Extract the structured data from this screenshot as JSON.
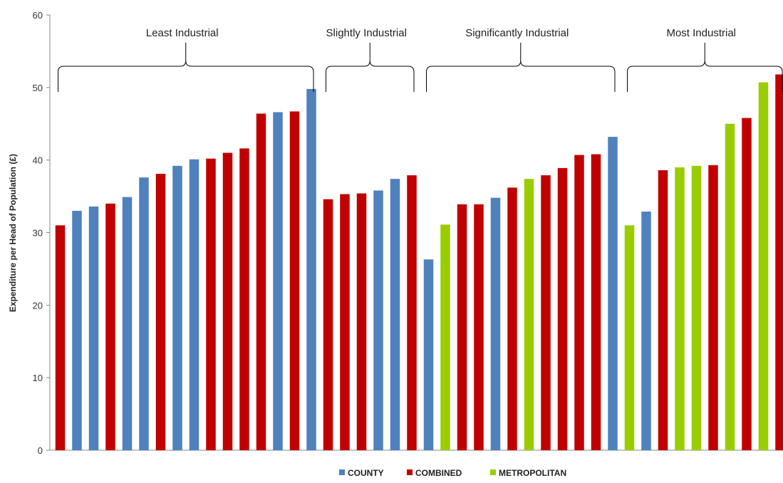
{
  "chart_data": {
    "type": "bar",
    "ylabel": "Expenditure per Head of Population (£)",
    "xlabel": "",
    "ylim": [
      0,
      60
    ],
    "yticks": [
      0,
      10,
      20,
      30,
      40,
      50,
      60
    ],
    "grid": false,
    "legend_placement": "bottom",
    "colors": {
      "COUNTY": "#4f81bd",
      "COMBINED": "#c00000",
      "METROPOLITAN": "#9acd00"
    },
    "legend": [
      "COUNTY",
      "COMBINED",
      "METROPOLITAN"
    ],
    "groups": [
      {
        "label": "Least Industrial",
        "start": 0,
        "end": 15
      },
      {
        "label": "Slightly Industrial",
        "start": 16,
        "end": 21
      },
      {
        "label": "Significantly Industrial",
        "start": 22,
        "end": 33
      },
      {
        "label": "Most Industrial",
        "start": 34,
        "end": 43
      }
    ],
    "bars": [
      {
        "type": "COMBINED",
        "value": 31.0
      },
      {
        "type": "COUNTY",
        "value": 33.0
      },
      {
        "type": "COUNTY",
        "value": 33.6
      },
      {
        "type": "COMBINED",
        "value": 34.0
      },
      {
        "type": "COUNTY",
        "value": 34.9
      },
      {
        "type": "COUNTY",
        "value": 37.6
      },
      {
        "type": "COMBINED",
        "value": 38.1
      },
      {
        "type": "COUNTY",
        "value": 39.2
      },
      {
        "type": "COUNTY",
        "value": 40.1
      },
      {
        "type": "COMBINED",
        "value": 40.2
      },
      {
        "type": "COMBINED",
        "value": 41.0
      },
      {
        "type": "COMBINED",
        "value": 41.6
      },
      {
        "type": "COMBINED",
        "value": 46.4
      },
      {
        "type": "COUNTY",
        "value": 46.6
      },
      {
        "type": "COMBINED",
        "value": 46.7
      },
      {
        "type": "COUNTY",
        "value": 49.8
      },
      {
        "type": "COMBINED",
        "value": 34.6
      },
      {
        "type": "COMBINED",
        "value": 35.3
      },
      {
        "type": "COMBINED",
        "value": 35.4
      },
      {
        "type": "COUNTY",
        "value": 35.8
      },
      {
        "type": "COUNTY",
        "value": 37.4
      },
      {
        "type": "COMBINED",
        "value": 37.9
      },
      {
        "type": "COUNTY",
        "value": 26.3
      },
      {
        "type": "METROPOLITAN",
        "value": 31.1
      },
      {
        "type": "COMBINED",
        "value": 33.9
      },
      {
        "type": "COMBINED",
        "value": 33.9
      },
      {
        "type": "COUNTY",
        "value": 34.8
      },
      {
        "type": "COMBINED",
        "value": 36.2
      },
      {
        "type": "METROPOLITAN",
        "value": 37.4
      },
      {
        "type": "COMBINED",
        "value": 37.9
      },
      {
        "type": "COMBINED",
        "value": 38.9
      },
      {
        "type": "COMBINED",
        "value": 40.7
      },
      {
        "type": "COMBINED",
        "value": 40.8
      },
      {
        "type": "COUNTY",
        "value": 43.2
      },
      {
        "type": "METROPOLITAN",
        "value": 31.0
      },
      {
        "type": "COUNTY",
        "value": 32.9
      },
      {
        "type": "COMBINED",
        "value": 38.6
      },
      {
        "type": "METROPOLITAN",
        "value": 39.0
      },
      {
        "type": "METROPOLITAN",
        "value": 39.2
      },
      {
        "type": "COMBINED",
        "value": 39.3
      },
      {
        "type": "METROPOLITAN",
        "value": 45.0
      },
      {
        "type": "COMBINED",
        "value": 45.8
      },
      {
        "type": "METROPOLITAN",
        "value": 50.7
      },
      {
        "type": "COMBINED",
        "value": 51.8
      }
    ]
  }
}
